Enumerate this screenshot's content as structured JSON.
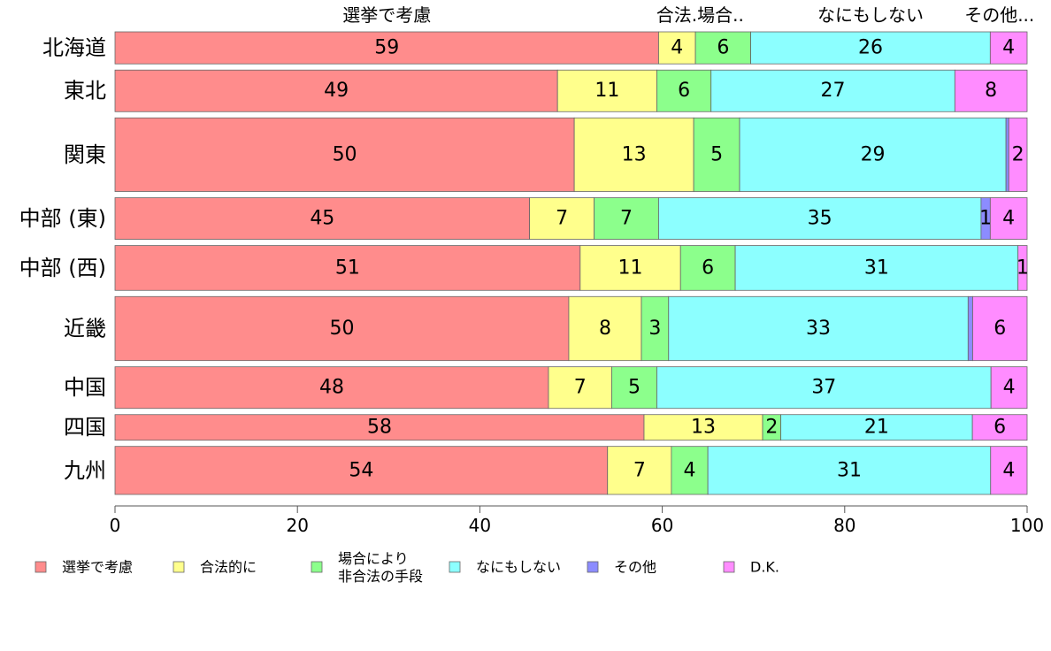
{
  "chart_data": {
    "type": "bar",
    "orientation": "horizontal",
    "stacked": true,
    "categories": [
      "北海道",
      "東北",
      "関東",
      "中部 (東)",
      "中部 (西)",
      "近畿",
      "中国",
      "四国",
      "九州"
    ],
    "category_weights": [
      1,
      1.3,
      2.3,
      1.3,
      1.4,
      2.0,
      1.3,
      0.8,
      1.5
    ],
    "series": [
      {
        "name": "選挙で考慮",
        "color": "#ff8c8c",
        "values": [
          59,
          49,
          50,
          45,
          51,
          50,
          48,
          58,
          54
        ]
      },
      {
        "name": "合法的に",
        "color": "#ffff8c",
        "values": [
          4,
          11,
          13,
          7,
          11,
          8,
          7,
          13,
          7
        ]
      },
      {
        "name": "場合により\n非合法の手段",
        "color": "#8cff8c",
        "values": [
          6,
          6,
          5,
          7,
          6,
          3,
          5,
          2,
          4
        ]
      },
      {
        "name": "なにもしない",
        "color": "#8cffff",
        "values": [
          26,
          27,
          29,
          35,
          31,
          33,
          37,
          21,
          31
        ]
      },
      {
        "name": "その他",
        "color": "#8c8cff",
        "values": [
          0,
          0,
          0.3,
          1,
          0,
          0.5,
          0,
          0,
          0
        ]
      },
      {
        "name": "D.K.",
        "color": "#ff8cff",
        "values": [
          4,
          8,
          2,
          4,
          1,
          6,
          4,
          6,
          4
        ]
      }
    ],
    "data_labels": [
      [
        "59",
        "4",
        "6",
        "26",
        "",
        "4"
      ],
      [
        "49",
        "11",
        "6",
        "27",
        "",
        "8"
      ],
      [
        "50",
        "13",
        "5",
        "29",
        "",
        "2"
      ],
      [
        "45",
        "7",
        "7",
        "35",
        "1",
        "4"
      ],
      [
        "51",
        "11",
        "6",
        "31",
        "",
        "1"
      ],
      [
        "50",
        "8",
        "3",
        "33",
        "",
        "6"
      ],
      [
        "48",
        "7",
        "5",
        "37",
        "",
        "4"
      ],
      [
        "58",
        "13",
        "2",
        "21",
        "",
        "6"
      ],
      [
        "54",
        "7",
        "4",
        "31",
        "",
        "4"
      ]
    ],
    "top_labels": [
      "選挙で考慮",
      "合法.場合..",
      "なにもしない",
      "その他..."
    ],
    "xlim": [
      0,
      100
    ],
    "xticks": [
      0,
      20,
      40,
      60,
      80,
      100
    ],
    "legend_position": "bottom",
    "grid": false
  }
}
